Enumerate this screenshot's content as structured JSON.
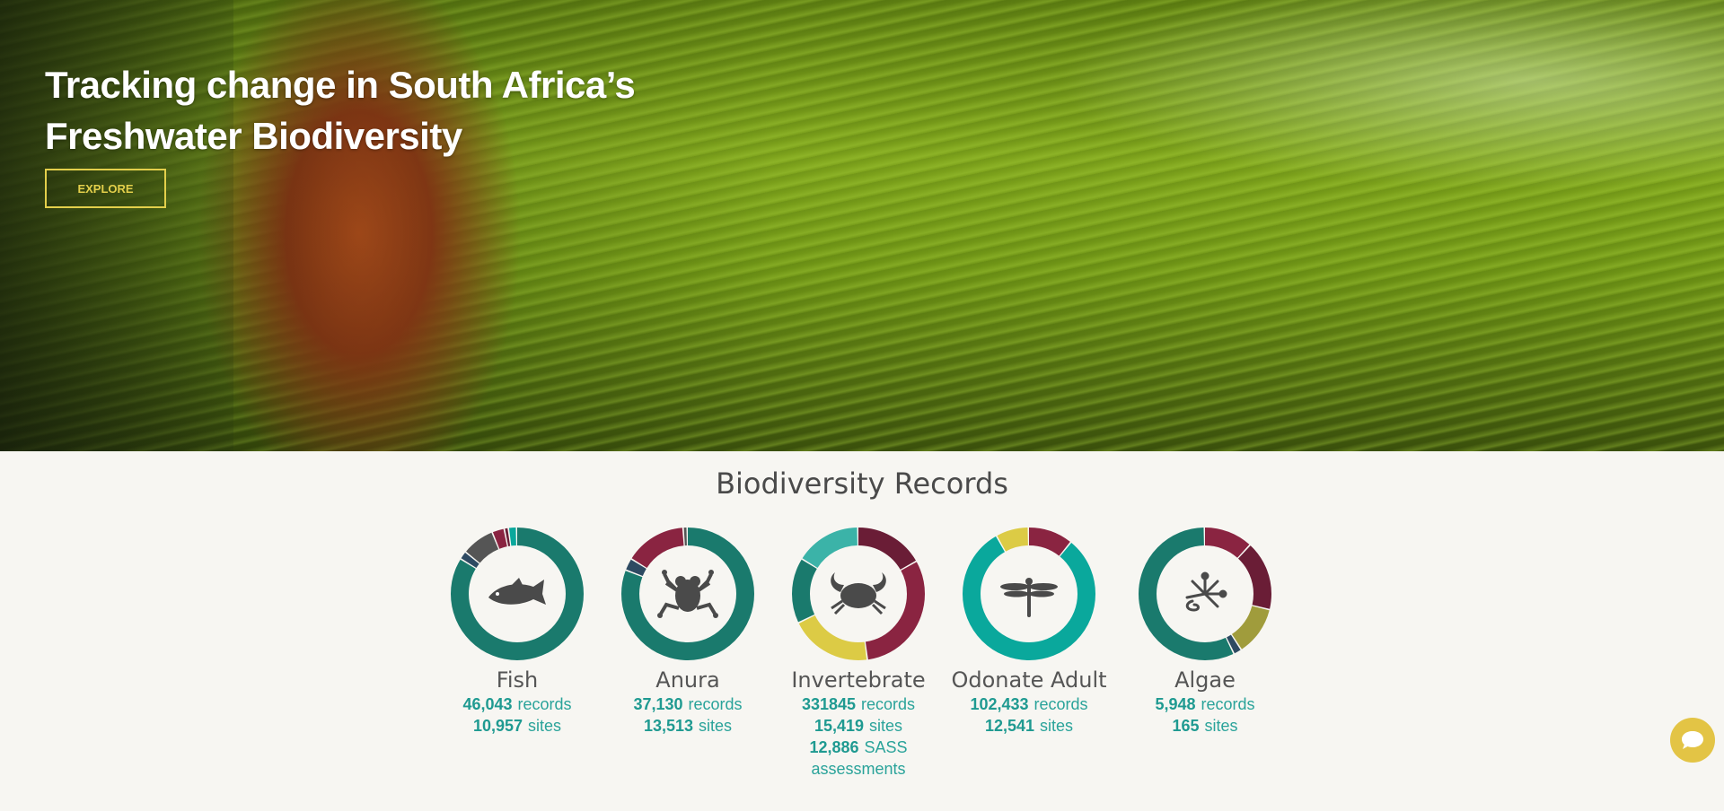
{
  "hero": {
    "title_line1": "Tracking change in South Africa’s",
    "title_line2": "Freshwater Biodiversity",
    "explore_label": "EXPLORE"
  },
  "section_title": "Biodiversity Records",
  "colors": {
    "teal_dark": "#1a7a6d",
    "teal": "#0aa89c",
    "teal_light": "#3bb3a8",
    "maroon": "#8a2441",
    "maroon_dark": "#6a1d36",
    "yellow": "#dccb45",
    "olive": "#a09c3c",
    "gray": "#555555",
    "navy": "#2e4a62",
    "accent_yellow": "#e3cf4b"
  },
  "modules": [
    {
      "name": "Fish",
      "icon": "fish-icon",
      "stats": [
        {
          "num": "46,043",
          "unit": "records"
        },
        {
          "num": "10,957",
          "unit": "sites"
        }
      ],
      "segments": [
        {
          "value": 0.84,
          "color": "#1a7a6d"
        },
        {
          "value": 0.02,
          "color": "#2e4a62"
        },
        {
          "value": 0.08,
          "color": "#555555"
        },
        {
          "value": 0.03,
          "color": "#8a2441"
        },
        {
          "value": 0.01,
          "color": "#6a1d36"
        },
        {
          "value": 0.02,
          "color": "#0aa89c"
        }
      ]
    },
    {
      "name": "Anura",
      "icon": "frog-icon",
      "stats": [
        {
          "num": "37,130",
          "unit": "records"
        },
        {
          "num": "13,513",
          "unit": "sites"
        }
      ],
      "segments": [
        {
          "value": 0.81,
          "color": "#1a7a6d"
        },
        {
          "value": 0.03,
          "color": "#2e4a62"
        },
        {
          "value": 0.15,
          "color": "#8a2441"
        },
        {
          "value": 0.01,
          "color": "#555555"
        }
      ]
    },
    {
      "name": "Invertebrate",
      "icon": "crab-icon",
      "stats": [
        {
          "num": "331845",
          "unit": "records"
        },
        {
          "num": "15,419",
          "unit": "sites"
        },
        {
          "num": "12,886",
          "unit": "SASS assessments"
        }
      ],
      "segments": [
        {
          "value": 0.17,
          "color": "#6a1d36"
        },
        {
          "value": 0.31,
          "color": "#8a2441"
        },
        {
          "value": 0.2,
          "color": "#dccb45"
        },
        {
          "value": 0.16,
          "color": "#1a7a6d"
        },
        {
          "value": 0.16,
          "color": "#3bb3a8"
        }
      ]
    },
    {
      "name": "Odonate Adult",
      "icon": "dragonfly-icon",
      "stats": [
        {
          "num": "102,433",
          "unit": "records"
        },
        {
          "num": "12,541",
          "unit": "sites"
        }
      ],
      "segments": [
        {
          "value": 0.11,
          "color": "#8a2441"
        },
        {
          "value": 0.81,
          "color": "#0aa89c"
        },
        {
          "value": 0.08,
          "color": "#dccb45"
        }
      ]
    },
    {
      "name": "Algae",
      "icon": "algae-icon",
      "stats": [
        {
          "num": "5,948",
          "unit": "records"
        },
        {
          "num": "165",
          "unit": "sites"
        }
      ],
      "segments": [
        {
          "value": 0.12,
          "color": "#8a2441"
        },
        {
          "value": 0.17,
          "color": "#6a1d36"
        },
        {
          "value": 0.12,
          "color": "#a09c3c"
        },
        {
          "value": 0.02,
          "color": "#2e4a62"
        },
        {
          "value": 0.57,
          "color": "#1a7a6d"
        }
      ]
    }
  ],
  "chat": {
    "icon": "chat-bubble-icon"
  }
}
